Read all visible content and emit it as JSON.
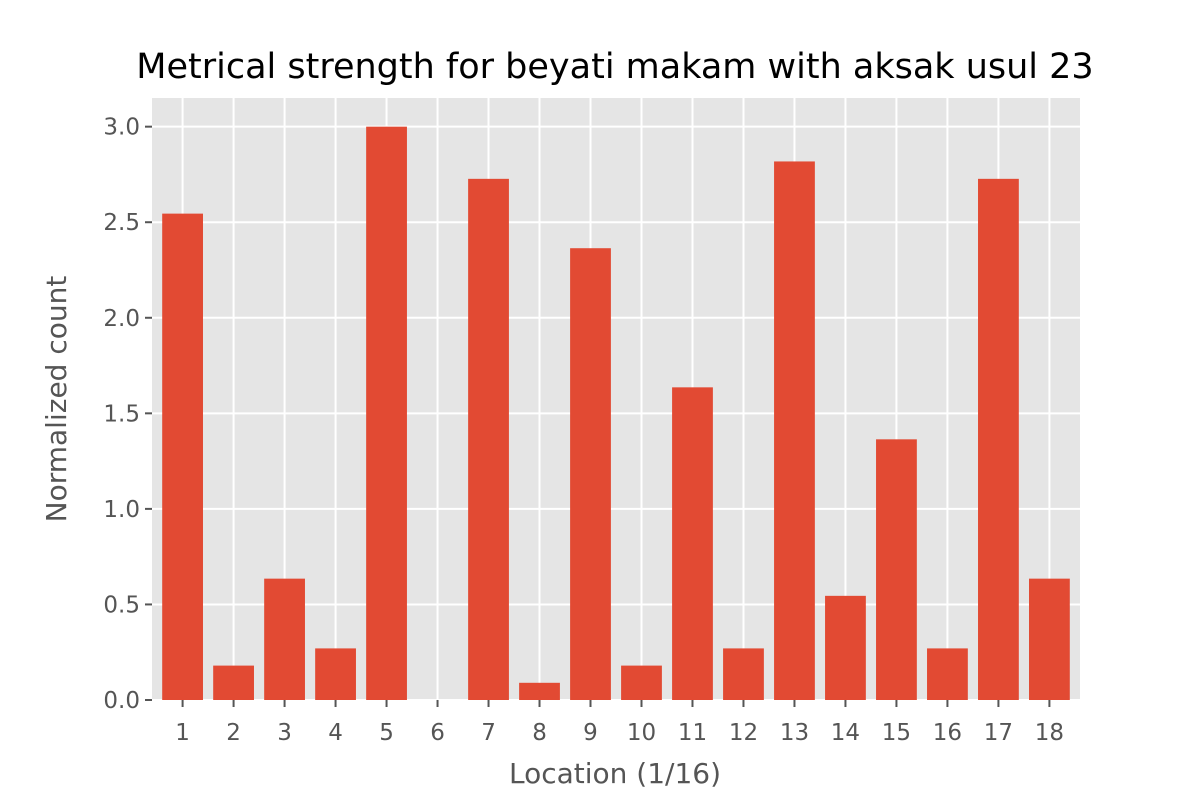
{
  "chart_data": {
    "type": "bar",
    "title": "Metrical strength for beyati makam with aksak usul 23",
    "xlabel": "Location (1/16)",
    "ylabel": "Normalized count",
    "categories": [
      "1",
      "2",
      "3",
      "4",
      "5",
      "6",
      "7",
      "8",
      "9",
      "10",
      "11",
      "12",
      "13",
      "14",
      "15",
      "16",
      "17",
      "18"
    ],
    "values": [
      2.545,
      0.18,
      0.635,
      0.27,
      3.0,
      0.0,
      2.727,
      0.09,
      2.364,
      0.18,
      1.636,
      0.27,
      2.818,
      0.545,
      1.364,
      0.27,
      2.727,
      0.635
    ],
    "ylim": [
      0,
      3.15
    ],
    "yticks": [
      0.0,
      0.5,
      1.0,
      1.5,
      2.0,
      2.5,
      3.0
    ],
    "ytick_labels": [
      "0.0",
      "0.5",
      "1.0",
      "1.5",
      "2.0",
      "2.5",
      "3.0"
    ],
    "grid": true,
    "style": "ggplot",
    "colors": {
      "bar": "#E24A33",
      "plot_background": "#E5E5E5",
      "grid": "#FFFFFF",
      "tick_text": "#555555",
      "title_text": "#000000"
    }
  }
}
